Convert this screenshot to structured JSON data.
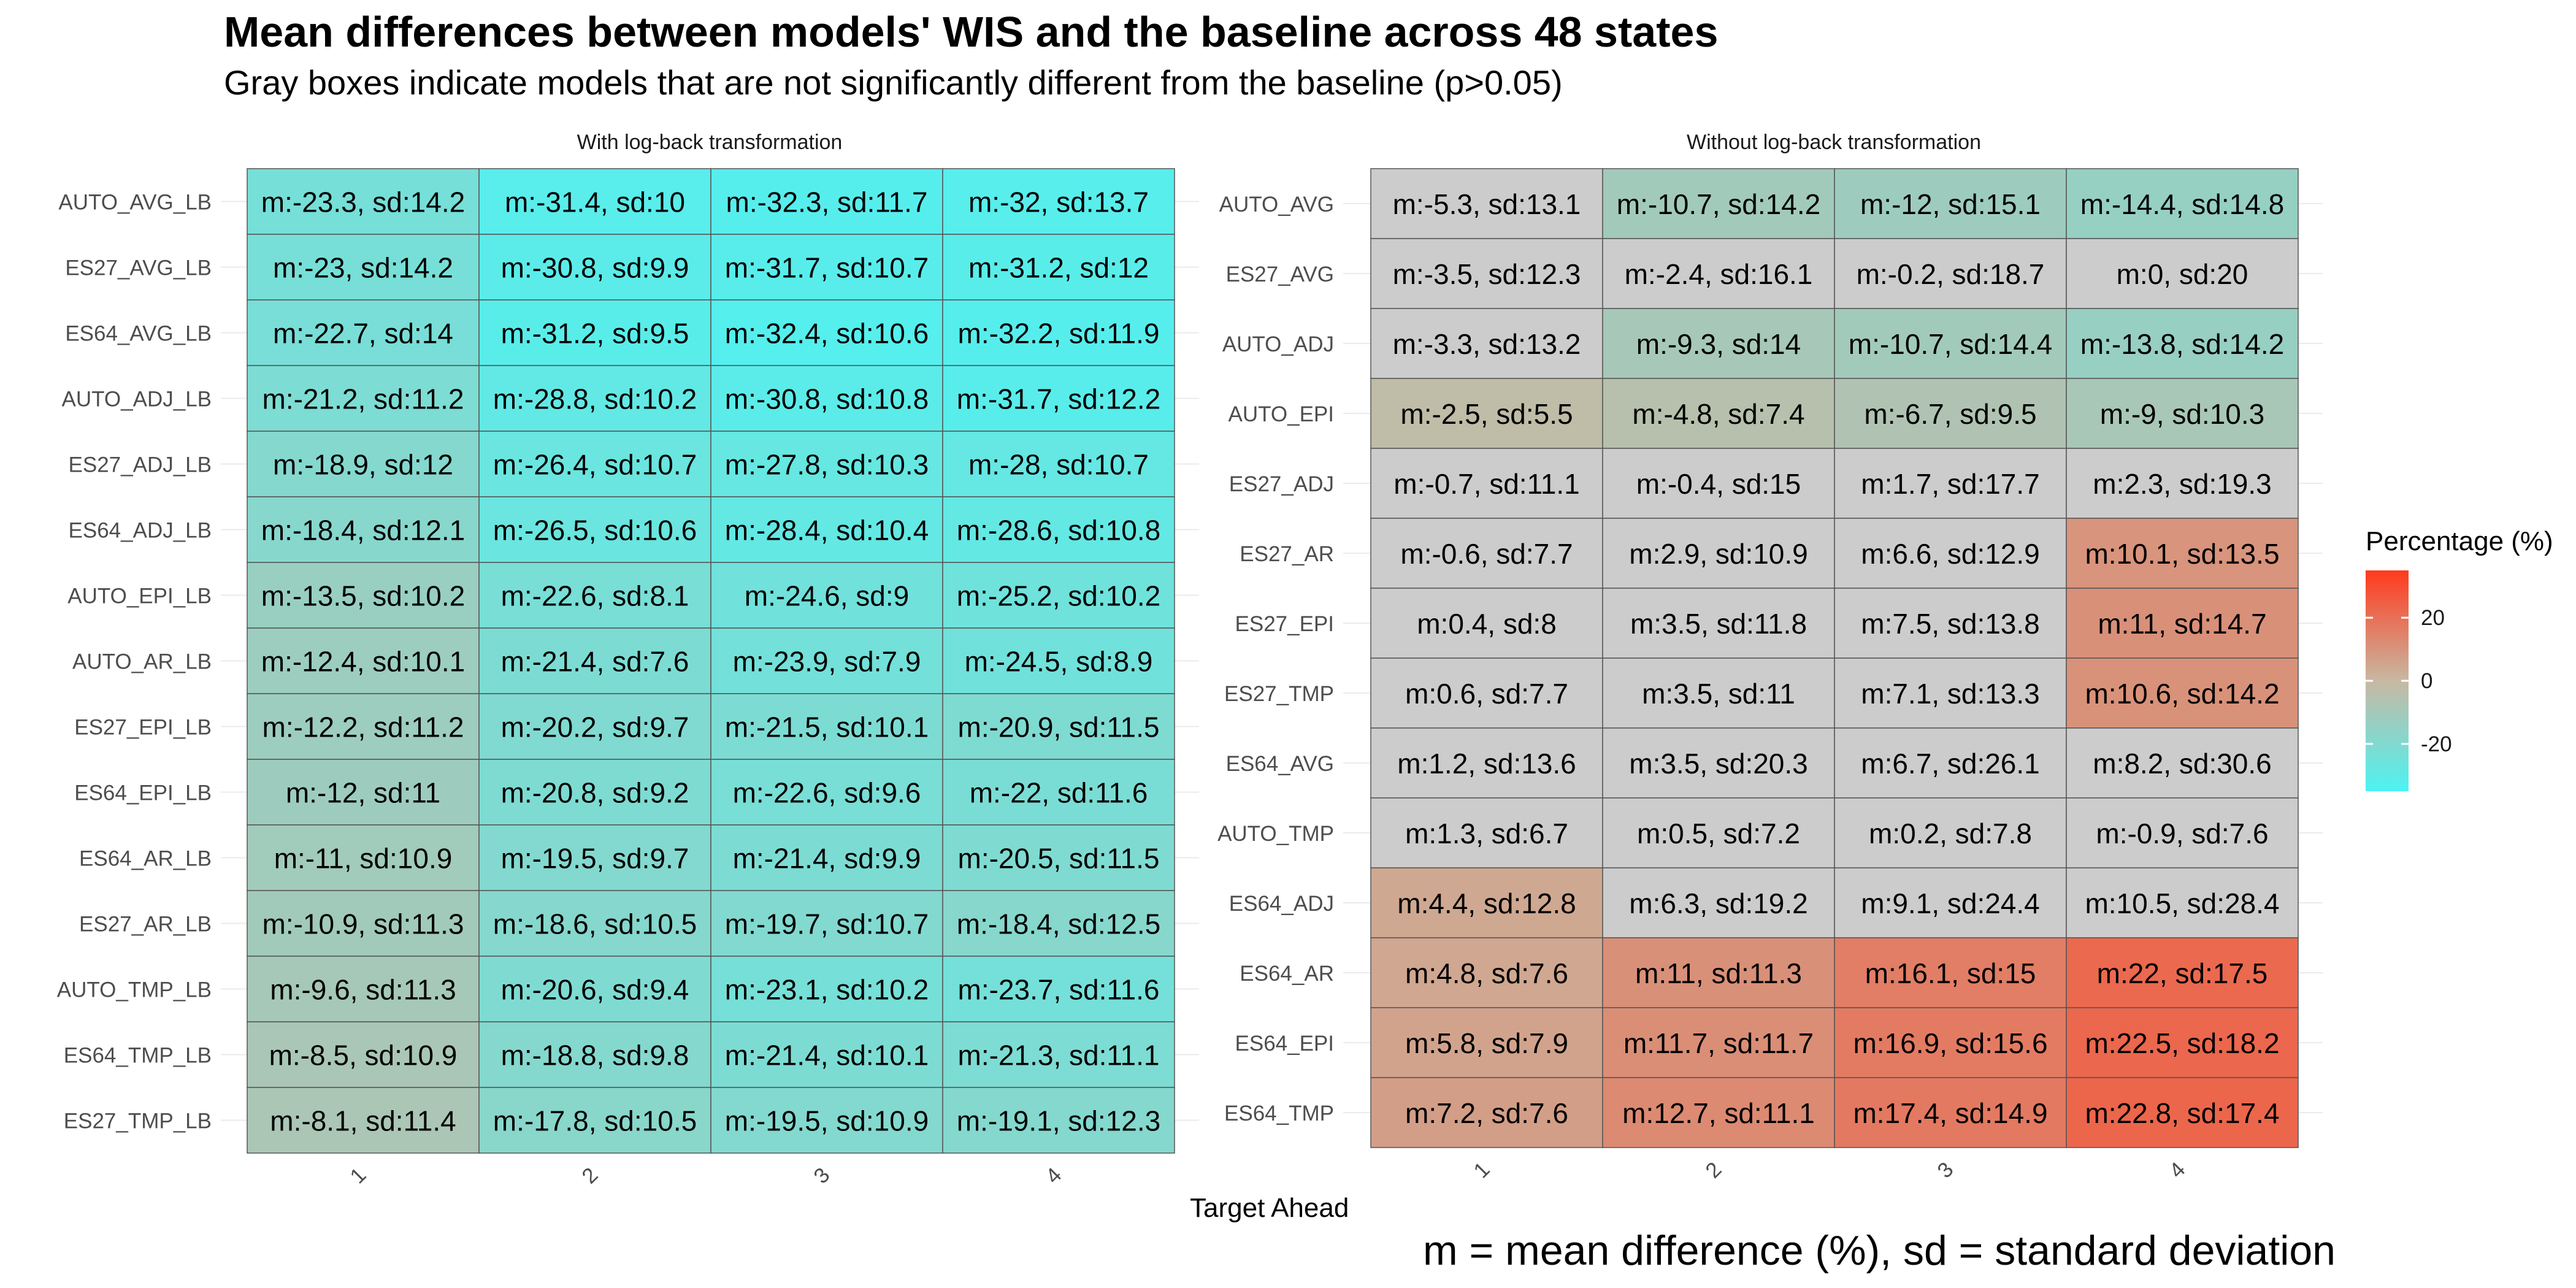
{
  "title": "Mean differences between models' WIS and the baseline across 48 states",
  "subtitle": "Gray boxes indicate models that are not significantly different from the baseline (p>0.05)",
  "xlabel": "Target Ahead",
  "footnote": "m = mean difference (%), sd = standard deviation",
  "legend": {
    "title": "Percentage (%)",
    "ticks": [
      20,
      0,
      -20
    ],
    "scale": {
      "low": -35,
      "high": 35,
      "low_color": "#4CF3F3",
      "mid_color": "#C8B8A2",
      "high_color": "#FF3A1E"
    }
  },
  "chart_data": [
    {
      "type": "heatmap",
      "facet_title": "With log-back transformation",
      "x_categories": [
        "1",
        "2",
        "3",
        "4"
      ],
      "y_categories": [
        "AUTO_AVG_LB",
        "ES27_AVG_LB",
        "ES64_AVG_LB",
        "AUTO_ADJ_LB",
        "ES27_ADJ_LB",
        "ES64_ADJ_LB",
        "AUTO_EPI_LB",
        "AUTO_AR_LB",
        "ES27_EPI_LB",
        "ES64_EPI_LB",
        "ES64_AR_LB",
        "ES27_AR_LB",
        "AUTO_TMP_LB",
        "ES64_TMP_LB",
        "ES27_TMP_LB"
      ],
      "mean": [
        [
          -23.3,
          -31.4,
          -32.3,
          -32
        ],
        [
          -23,
          -30.8,
          -31.7,
          -31.2
        ],
        [
          -22.7,
          -31.2,
          -32.4,
          -32.2
        ],
        [
          -21.2,
          -28.8,
          -30.8,
          -31.7
        ],
        [
          -18.9,
          -26.4,
          -27.8,
          -28
        ],
        [
          -18.4,
          -26.5,
          -28.4,
          -28.6
        ],
        [
          -13.5,
          -22.6,
          -24.6,
          -25.2
        ],
        [
          -12.4,
          -21.4,
          -23.9,
          -24.5
        ],
        [
          -12.2,
          -20.2,
          -21.5,
          -20.9
        ],
        [
          -12,
          -20.8,
          -22.6,
          -22
        ],
        [
          -11,
          -19.5,
          -21.4,
          -20.5
        ],
        [
          -10.9,
          -18.6,
          -19.7,
          -18.4
        ],
        [
          -9.6,
          -20.6,
          -23.1,
          -23.7
        ],
        [
          -8.5,
          -18.8,
          -21.4,
          -21.3
        ],
        [
          -8.1,
          -17.8,
          -19.5,
          -19.1
        ]
      ],
      "sd": [
        [
          14.2,
          10,
          11.7,
          13.7
        ],
        [
          14.2,
          9.9,
          10.7,
          12
        ],
        [
          14,
          9.5,
          10.6,
          11.9
        ],
        [
          11.2,
          10.2,
          10.8,
          12.2
        ],
        [
          12,
          10.7,
          10.3,
          10.7
        ],
        [
          12.1,
          10.6,
          10.4,
          10.8
        ],
        [
          10.2,
          8.1,
          9,
          10.2
        ],
        [
          10.1,
          7.6,
          7.9,
          8.9
        ],
        [
          11.2,
          9.7,
          10.1,
          11.5
        ],
        [
          11,
          9.2,
          9.6,
          11.6
        ],
        [
          10.9,
          9.7,
          9.9,
          11.5
        ],
        [
          11.3,
          10.5,
          10.7,
          12.5
        ],
        [
          11.3,
          9.4,
          10.2,
          11.6
        ],
        [
          10.9,
          9.8,
          10.1,
          11.1
        ],
        [
          11.4,
          10.5,
          10.9,
          12.3
        ]
      ],
      "not_significant": [
        [
          false,
          false,
          false,
          false
        ],
        [
          false,
          false,
          false,
          false
        ],
        [
          false,
          false,
          false,
          false
        ],
        [
          false,
          false,
          false,
          false
        ],
        [
          false,
          false,
          false,
          false
        ],
        [
          false,
          false,
          false,
          false
        ],
        [
          false,
          false,
          false,
          false
        ],
        [
          false,
          false,
          false,
          false
        ],
        [
          false,
          false,
          false,
          false
        ],
        [
          false,
          false,
          false,
          false
        ],
        [
          false,
          false,
          false,
          false
        ],
        [
          false,
          false,
          false,
          false
        ],
        [
          false,
          false,
          false,
          false
        ],
        [
          false,
          false,
          false,
          false
        ],
        [
          false,
          false,
          false,
          false
        ]
      ]
    },
    {
      "type": "heatmap",
      "facet_title": "Without log-back transformation",
      "x_categories": [
        "1",
        "2",
        "3",
        "4"
      ],
      "y_categories": [
        "AUTO_AVG",
        "ES27_AVG",
        "AUTO_ADJ",
        "AUTO_EPI",
        "ES27_ADJ",
        "ES27_AR",
        "ES27_EPI",
        "ES27_TMP",
        "ES64_AVG",
        "AUTO_TMP",
        "ES64_ADJ",
        "ES64_AR",
        "ES64_EPI",
        "ES64_TMP"
      ],
      "mean": [
        [
          -5.3,
          -10.7,
          -12,
          -14.4
        ],
        [
          -3.5,
          -2.4,
          -0.2,
          0
        ],
        [
          -3.3,
          -9.3,
          -10.7,
          -13.8
        ],
        [
          -2.5,
          -4.8,
          -6.7,
          -9
        ],
        [
          -0.7,
          -0.4,
          1.7,
          2.3
        ],
        [
          -0.6,
          2.9,
          6.6,
          10.1
        ],
        [
          0.4,
          3.5,
          7.5,
          11
        ],
        [
          0.6,
          3.5,
          7.1,
          10.6
        ],
        [
          1.2,
          3.5,
          6.7,
          8.2
        ],
        [
          1.3,
          0.5,
          0.2,
          -0.9
        ],
        [
          4.4,
          6.3,
          9.1,
          10.5
        ],
        [
          4.8,
          11,
          16.1,
          22
        ],
        [
          5.8,
          11.7,
          16.9,
          22.5
        ],
        [
          7.2,
          12.7,
          17.4,
          22.8
        ]
      ],
      "sd": [
        [
          13.1,
          14.2,
          15.1,
          14.8
        ],
        [
          12.3,
          16.1,
          18.7,
          20
        ],
        [
          13.2,
          14,
          14.4,
          14.2
        ],
        [
          5.5,
          7.4,
          9.5,
          10.3
        ],
        [
          11.1,
          15,
          17.7,
          19.3
        ],
        [
          7.7,
          10.9,
          12.9,
          13.5
        ],
        [
          8,
          11.8,
          13.8,
          14.7
        ],
        [
          7.7,
          11,
          13.3,
          14.2
        ],
        [
          13.6,
          20.3,
          26.1,
          30.6
        ],
        [
          6.7,
          7.2,
          7.8,
          7.6
        ],
        [
          12.8,
          19.2,
          24.4,
          28.4
        ],
        [
          7.6,
          11.3,
          15,
          17.5
        ],
        [
          7.9,
          11.7,
          15.6,
          18.2
        ],
        [
          7.6,
          11.1,
          14.9,
          17.4
        ]
      ],
      "not_significant": [
        [
          true,
          false,
          false,
          false
        ],
        [
          true,
          true,
          true,
          true
        ],
        [
          true,
          false,
          false,
          false
        ],
        [
          false,
          false,
          false,
          false
        ],
        [
          true,
          true,
          true,
          true
        ],
        [
          true,
          true,
          true,
          false
        ],
        [
          true,
          true,
          true,
          false
        ],
        [
          true,
          true,
          true,
          false
        ],
        [
          true,
          true,
          true,
          true
        ],
        [
          true,
          true,
          true,
          true
        ],
        [
          false,
          true,
          true,
          true
        ],
        [
          false,
          false,
          false,
          false
        ],
        [
          false,
          false,
          false,
          false
        ],
        [
          false,
          false,
          false,
          false
        ]
      ]
    }
  ]
}
